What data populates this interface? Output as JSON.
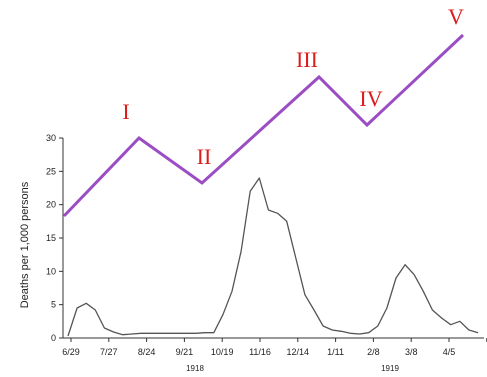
{
  "chart_data": {
    "type": "line",
    "ylabel": "Deaths per 1,000 persons",
    "ylim": [
      0,
      30
    ],
    "yticks": [
      "0",
      "5",
      "10",
      "15",
      "20",
      "25",
      "30"
    ],
    "xtick_labels": [
      "6/29",
      "7/27",
      "8/24",
      "9/21",
      "10/19",
      "11/16",
      "12/14",
      "1/11",
      "2/8",
      "3/8",
      "4/5"
    ],
    "year_labels": [
      "1918",
      "1919"
    ],
    "series": [
      {
        "values": [
          0.3,
          4.5,
          5.2,
          4.2,
          1.5,
          0.9,
          0.5,
          0.6,
          0.7,
          0.7,
          0.7,
          0.7,
          0.7,
          0.7,
          0.7,
          0.8,
          0.8,
          3.5,
          7.0,
          13.0,
          22.0,
          24.0,
          19.2,
          18.7,
          17.5,
          12.0,
          6.5,
          4.2,
          1.8,
          1.2,
          1.0,
          0.7,
          0.6,
          0.8,
          1.8,
          4.5,
          9.0,
          11.0,
          9.5,
          7.0,
          4.2,
          3.0,
          2.0,
          2.5,
          1.2,
          0.8
        ],
        "color": "#555555"
      }
    ],
    "wave_overlay": {
      "labels": [
        "I",
        "II",
        "III",
        "IV",
        "V"
      ],
      "color": "#9b4dc4",
      "label_color": "#dd1c1c"
    }
  }
}
